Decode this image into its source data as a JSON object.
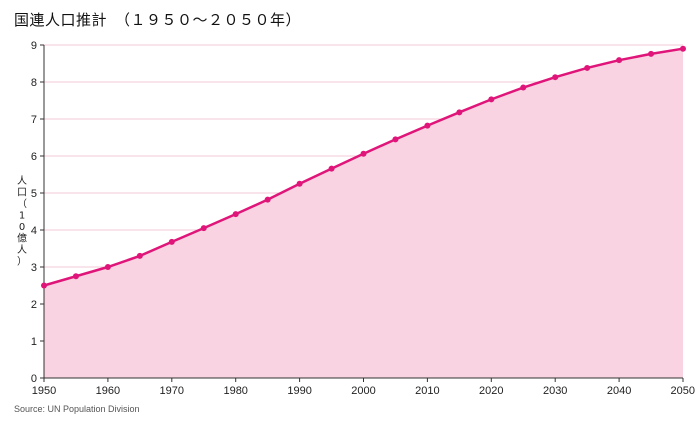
{
  "title": "国連人口推計　（１９５０～２０５０年）",
  "source": "Source: UN Population Division",
  "colors": {
    "line": "#e0157a",
    "fill": "#f9d3e1",
    "grid": "#f2b6cb",
    "axis": "#333333"
  },
  "chart_data": {
    "type": "area",
    "title": "国連人口推計　（１９５０～２０５０年）",
    "ylabel": "人口（10億人）",
    "xlabel": "",
    "xlim": [
      1950,
      2050
    ],
    "ylim": [
      0,
      9
    ],
    "xticks": [
      1950,
      1960,
      1970,
      1980,
      1990,
      2000,
      2010,
      2020,
      2030,
      2040,
      2050
    ],
    "yticks": [
      0,
      1,
      2,
      3,
      4,
      5,
      6,
      7,
      8,
      9
    ],
    "grid": true,
    "series": [
      {
        "x": [
          1950,
          1955,
          1960,
          1965,
          1970,
          1975,
          1980,
          1985,
          1990,
          1995,
          2000,
          2005,
          2010,
          2015,
          2020,
          2025,
          2030,
          2035,
          2040,
          2045,
          2050
        ],
        "values": [
          2.5,
          2.75,
          3.0,
          3.3,
          3.68,
          4.05,
          4.43,
          4.82,
          5.25,
          5.66,
          6.06,
          6.45,
          6.82,
          7.18,
          7.53,
          7.85,
          8.13,
          8.38,
          8.59,
          8.76,
          8.9
        ]
      }
    ]
  }
}
